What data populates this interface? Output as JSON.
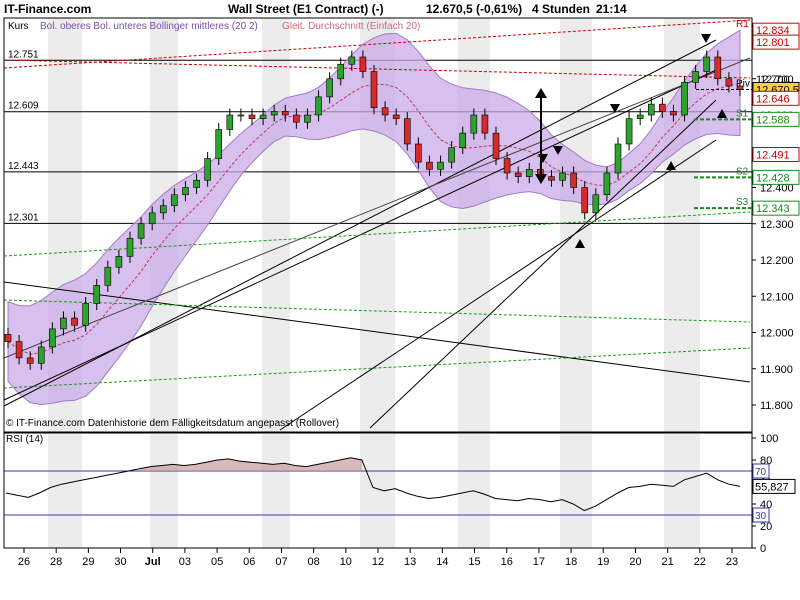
{
  "header": {
    "brand": "IT-Finance.com",
    "title": "Wall Street (E1 Contract) (-)",
    "quote": "12.670,5 (-0,61%)",
    "timeframe": "4 Stunden",
    "time": "21:14"
  },
  "legend": {
    "kurs": "Kurs",
    "bollinger": "Bol. oberes Bol. unteres Bollinger mittleres (20 2)",
    "sma": "Gleit. Durchschnitt (Einfach 20)"
  },
  "footer_note": "© IT-Finance.com  Datenhistorie dem Fälligkeitsdatum angepasst (Rollover)",
  "colors": {
    "up_candle": "#2fa12f",
    "down_candle": "#d62b2b",
    "bollinger_fill": "#c9a9e8",
    "bollinger_line": "#a07cc8",
    "sma": "#c0395a",
    "resistance_label": "#cc0000",
    "support_label": "#1b8a1b",
    "rsi_line": "#000000"
  },
  "chart_data": [
    {
      "type": "candlestick",
      "title": "Wall Street (E1 Contract) (-)",
      "ylim": [
        11800,
        12840
      ],
      "y_ticks": [
        "12.800",
        "12.700",
        "12.600",
        "12.500",
        "12.400",
        "12.300",
        "12.200",
        "12.100",
        "12.000",
        "11.900",
        "11.800"
      ],
      "x_ticks": [
        "26",
        "28",
        "29",
        "30",
        "Jul",
        "03",
        "05",
        "06",
        "07",
        "08",
        "10",
        "12",
        "13",
        "14",
        "15",
        "16",
        "17",
        "18",
        "19",
        "20",
        "21",
        "22",
        "23"
      ],
      "price_levels_left": [
        {
          "label": "12.751",
          "value": 12751
        },
        {
          "label": "12.609",
          "value": 12609
        },
        {
          "label": "12.443",
          "value": 12443
        },
        {
          "label": "12.301",
          "value": 12301
        }
      ],
      "right_labels": [
        {
          "label": "R1",
          "value": 12834,
          "text": "12.834",
          "color": "red"
        },
        {
          "label": "",
          "value": 12801,
          "text": "12.801",
          "color": "red"
        },
        {
          "label": "",
          "value": 12700,
          "text": "12.700",
          "color": "black"
        },
        {
          "label": "Piv",
          "value": 12670.5,
          "text": "12.670,5",
          "color": "last"
        },
        {
          "label": "",
          "value": 12646,
          "text": "12.646",
          "color": "red"
        },
        {
          "label": "S1",
          "value": 12588,
          "text": "12.588",
          "color": "green"
        },
        {
          "label": "",
          "value": 12491,
          "text": "12.491",
          "color": "red"
        },
        {
          "label": "S2",
          "value": 12428,
          "text": "12.428",
          "color": "green"
        },
        {
          "label": "S3",
          "value": 12343,
          "text": "12.343",
          "color": "green"
        }
      ],
      "last_price": 12670.5,
      "close_series": [
        11975,
        11930,
        11915,
        11960,
        12010,
        12040,
        12020,
        12080,
        12130,
        12180,
        12210,
        12260,
        12300,
        12330,
        12350,
        12380,
        12400,
        12420,
        12480,
        12560,
        12600,
        12600,
        12590,
        12600,
        12610,
        12600,
        12580,
        12600,
        12650,
        12700,
        12740,
        12760,
        12720,
        12620,
        12600,
        12590,
        12520,
        12470,
        12450,
        12470,
        12510,
        12550,
        12600,
        12550,
        12480,
        12440,
        12430,
        12450,
        12430,
        12420,
        12440,
        12400,
        12330,
        12380,
        12440,
        12520,
        12590,
        12600,
        12630,
        12610,
        12600,
        12690,
        12720,
        12760,
        12700,
        12680,
        12670.5
      ]
    },
    {
      "type": "line",
      "title": "RSI (14)",
      "ylim": [
        0,
        100
      ],
      "y_ticks": [
        "100",
        "80",
        "60",
        "40",
        "20",
        "0"
      ],
      "levels": [
        70,
        30
      ],
      "current_value": "55,827",
      "values": [
        50,
        48,
        46,
        50,
        55,
        58,
        60,
        62,
        64,
        66,
        68,
        70,
        72,
        74,
        75,
        76,
        75,
        76,
        78,
        80,
        81,
        79,
        78,
        77,
        76,
        77,
        75,
        74,
        76,
        78,
        80,
        82,
        80,
        55,
        52,
        54,
        50,
        47,
        45,
        46,
        48,
        50,
        52,
        49,
        45,
        44,
        43,
        45,
        44,
        42,
        44,
        40,
        34,
        38,
        44,
        50,
        55,
        56,
        58,
        57,
        56,
        62,
        65,
        68,
        62,
        58,
        56
      ]
    }
  ]
}
